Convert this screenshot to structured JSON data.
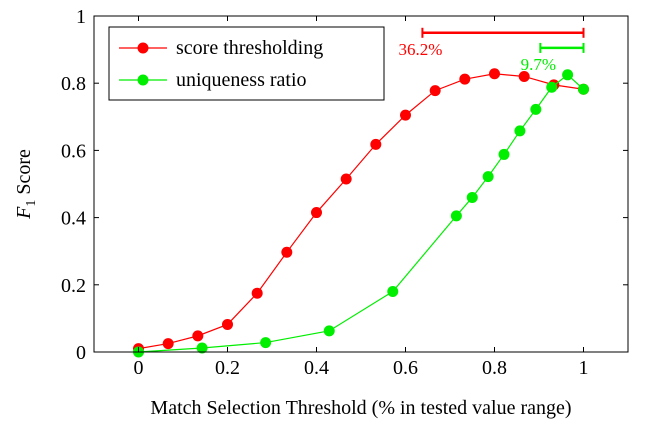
{
  "chart_data": {
    "type": "line",
    "xlabel": "Match Selection Threshold (% in tested value range)",
    "ylabel_main": "F",
    "ylabel_sub": "1",
    "ylabel_rest": " Score",
    "xlim": [
      -0.1,
      1.1
    ],
    "ylim": [
      0,
      1
    ],
    "xticks": [
      0,
      0.2,
      0.4,
      0.6,
      0.8,
      1
    ],
    "xtick_labels": [
      "0",
      "0.2",
      "0.4",
      "0.6",
      "0.8",
      "1"
    ],
    "yticks": [
      0,
      0.2,
      0.4,
      0.6,
      0.8,
      1
    ],
    "ytick_labels": [
      "0",
      "0.2",
      "0.4",
      "0.6",
      "0.8",
      "1"
    ],
    "grid": false,
    "legend_position": "top-left",
    "series": [
      {
        "name": "score thresholding",
        "color": "#ff0000",
        "x": [
          0,
          0.0667,
          0.1333,
          0.2,
          0.2667,
          0.3333,
          0.4,
          0.4667,
          0.5333,
          0.6,
          0.6667,
          0.7333,
          0.8,
          0.8667,
          0.9333,
          1
        ],
        "y": [
          0.01,
          0.025,
          0.048,
          0.082,
          0.175,
          0.297,
          0.415,
          0.515,
          0.618,
          0.705,
          0.778,
          0.812,
          0.828,
          0.82,
          0.795,
          0.782
        ]
      },
      {
        "name": "uniqueness ratio",
        "color": "#00ee00",
        "x": [
          0,
          0.1429,
          0.2857,
          0.4286,
          0.5714,
          0.7143,
          0.75,
          0.7857,
          0.8214,
          0.8571,
          0.8929,
          0.9286,
          0.9643,
          1
        ],
        "y": [
          0,
          0.012,
          0.028,
          0.063,
          0.18,
          0.405,
          0.46,
          0.522,
          0.588,
          0.658,
          0.722,
          0.788,
          0.825,
          0.782
        ]
      }
    ],
    "annotations": [
      {
        "text": "36.2%",
        "color": "#ff0000",
        "x_from": 0.638,
        "x_to": 1,
        "y": 0.95
      },
      {
        "text": "9.7%",
        "color": "#00ee00",
        "x_from": 0.903,
        "x_to": 1,
        "y": 0.905
      }
    ]
  }
}
